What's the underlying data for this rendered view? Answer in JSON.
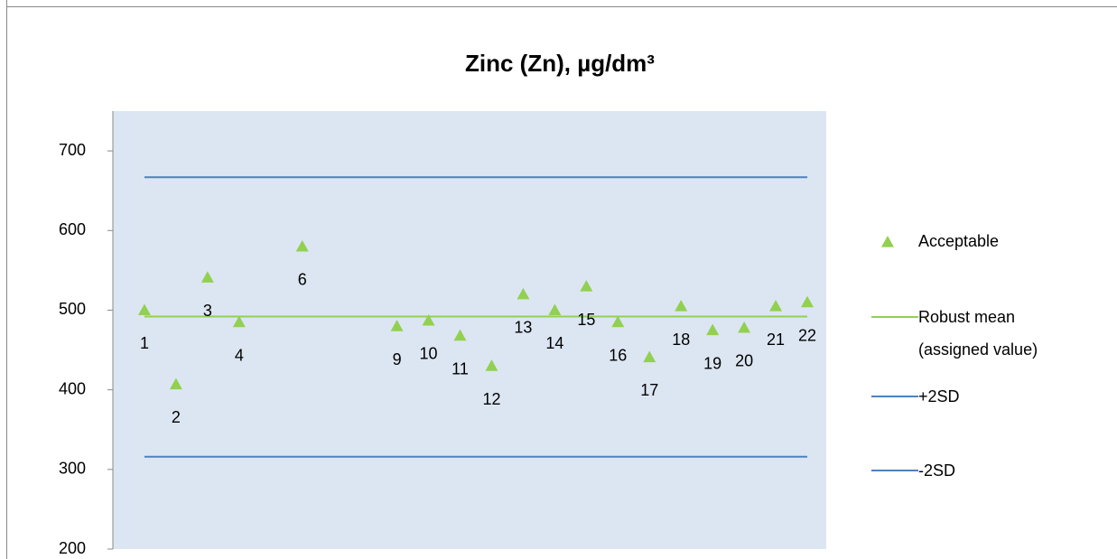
{
  "chart_data": {
    "type": "scatter",
    "title": "Zinc (Zn), µg/dm³",
    "x": [
      1,
      2,
      3,
      4,
      6,
      9,
      10,
      11,
      12,
      13,
      14,
      15,
      16,
      17,
      18,
      19,
      20,
      21,
      22
    ],
    "series": [
      {
        "name": "Acceptable",
        "color": "#92d050",
        "values": [
          500,
          407,
          541,
          485,
          580,
          480,
          487,
          468,
          430,
          520,
          500,
          530,
          485,
          441,
          505,
          475,
          478,
          505,
          510
        ]
      }
    ],
    "reference_lines": [
      {
        "name": "Robust mean (assigned value)",
        "color": "#92d050",
        "value": 492
      },
      {
        "name": "+2SD",
        "color": "#4f81bd",
        "value": 667
      },
      {
        "name": "-2SD",
        "color": "#4f81bd",
        "value": 316
      }
    ],
    "xlim": [
      0,
      22.6
    ],
    "ylim": [
      200,
      750
    ],
    "yticks": [
      200,
      300,
      400,
      500,
      600,
      700
    ],
    "legend": "right"
  }
}
